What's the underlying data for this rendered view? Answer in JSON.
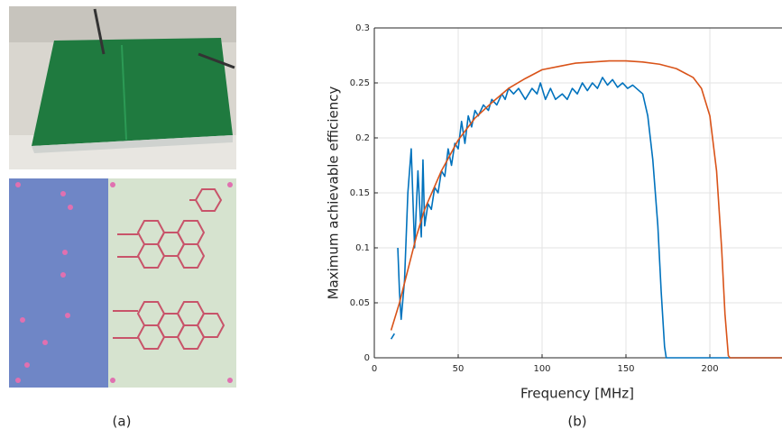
{
  "panel_labels": [
    "(a)",
    "(b)"
  ],
  "chart_data": {
    "type": "line",
    "xlabel": "Frequency [MHz]",
    "ylabel": "Maximum achievable efficiency",
    "xlim": [
      0,
      243
    ],
    "ylim": [
      0,
      0.3
    ],
    "xticks": [
      0,
      50,
      100,
      150,
      200
    ],
    "yticks": [
      0,
      0.05,
      0.1,
      0.15,
      0.2,
      0.25,
      0.3
    ],
    "grid": true,
    "series": [
      {
        "color": "#0072bd",
        "x": [
          10,
          12,
          13,
          14,
          15,
          16,
          18,
          20,
          22,
          24,
          26,
          28,
          29,
          30,
          32,
          34,
          36,
          38,
          40,
          42,
          44,
          46,
          48,
          50,
          52,
          54,
          56,
          58,
          60,
          62,
          65,
          68,
          70,
          73,
          76,
          78,
          80,
          83,
          86,
          90,
          94,
          97,
          99,
          102,
          105,
          108,
          112,
          115,
          118,
          121,
          124,
          127,
          130,
          133,
          136,
          139,
          142,
          145,
          148,
          151,
          154,
          157,
          160,
          163,
          166,
          169,
          171,
          173,
          174,
          180,
          200,
          243
        ],
        "values": [
          0.017,
          0.022,
          null,
          0.1,
          0.06,
          0.035,
          0.07,
          0.15,
          0.19,
          0.1,
          0.17,
          0.11,
          0.18,
          0.12,
          0.14,
          0.135,
          0.155,
          0.15,
          0.17,
          0.165,
          0.19,
          0.175,
          0.195,
          0.19,
          0.215,
          0.195,
          0.22,
          0.21,
          0.225,
          0.22,
          0.23,
          0.225,
          0.235,
          0.23,
          0.24,
          0.235,
          0.245,
          0.24,
          0.245,
          0.235,
          0.245,
          0.24,
          0.25,
          0.235,
          0.245,
          0.235,
          0.24,
          0.235,
          0.245,
          0.24,
          0.25,
          0.243,
          0.25,
          0.245,
          0.255,
          0.248,
          0.253,
          0.246,
          0.25,
          0.245,
          0.248,
          0.244,
          0.24,
          0.22,
          0.18,
          0.12,
          0.06,
          0.01,
          0,
          0,
          0,
          0
        ]
      },
      {
        "color": "#d95319",
        "x": [
          10,
          15,
          20,
          25,
          30,
          40,
          50,
          60,
          70,
          80,
          90,
          100,
          110,
          120,
          130,
          140,
          150,
          160,
          170,
          180,
          190,
          195,
          200,
          204,
          207,
          209,
          211,
          212,
          243
        ],
        "values": [
          0.025,
          0.05,
          0.08,
          0.11,
          0.135,
          0.17,
          0.198,
          0.218,
          0.232,
          0.245,
          0.254,
          0.262,
          0.265,
          0.268,
          0.269,
          0.27,
          0.27,
          0.269,
          0.267,
          0.263,
          0.255,
          0.245,
          0.22,
          0.17,
          0.1,
          0.04,
          0.002,
          0,
          0
        ]
      }
    ]
  }
}
